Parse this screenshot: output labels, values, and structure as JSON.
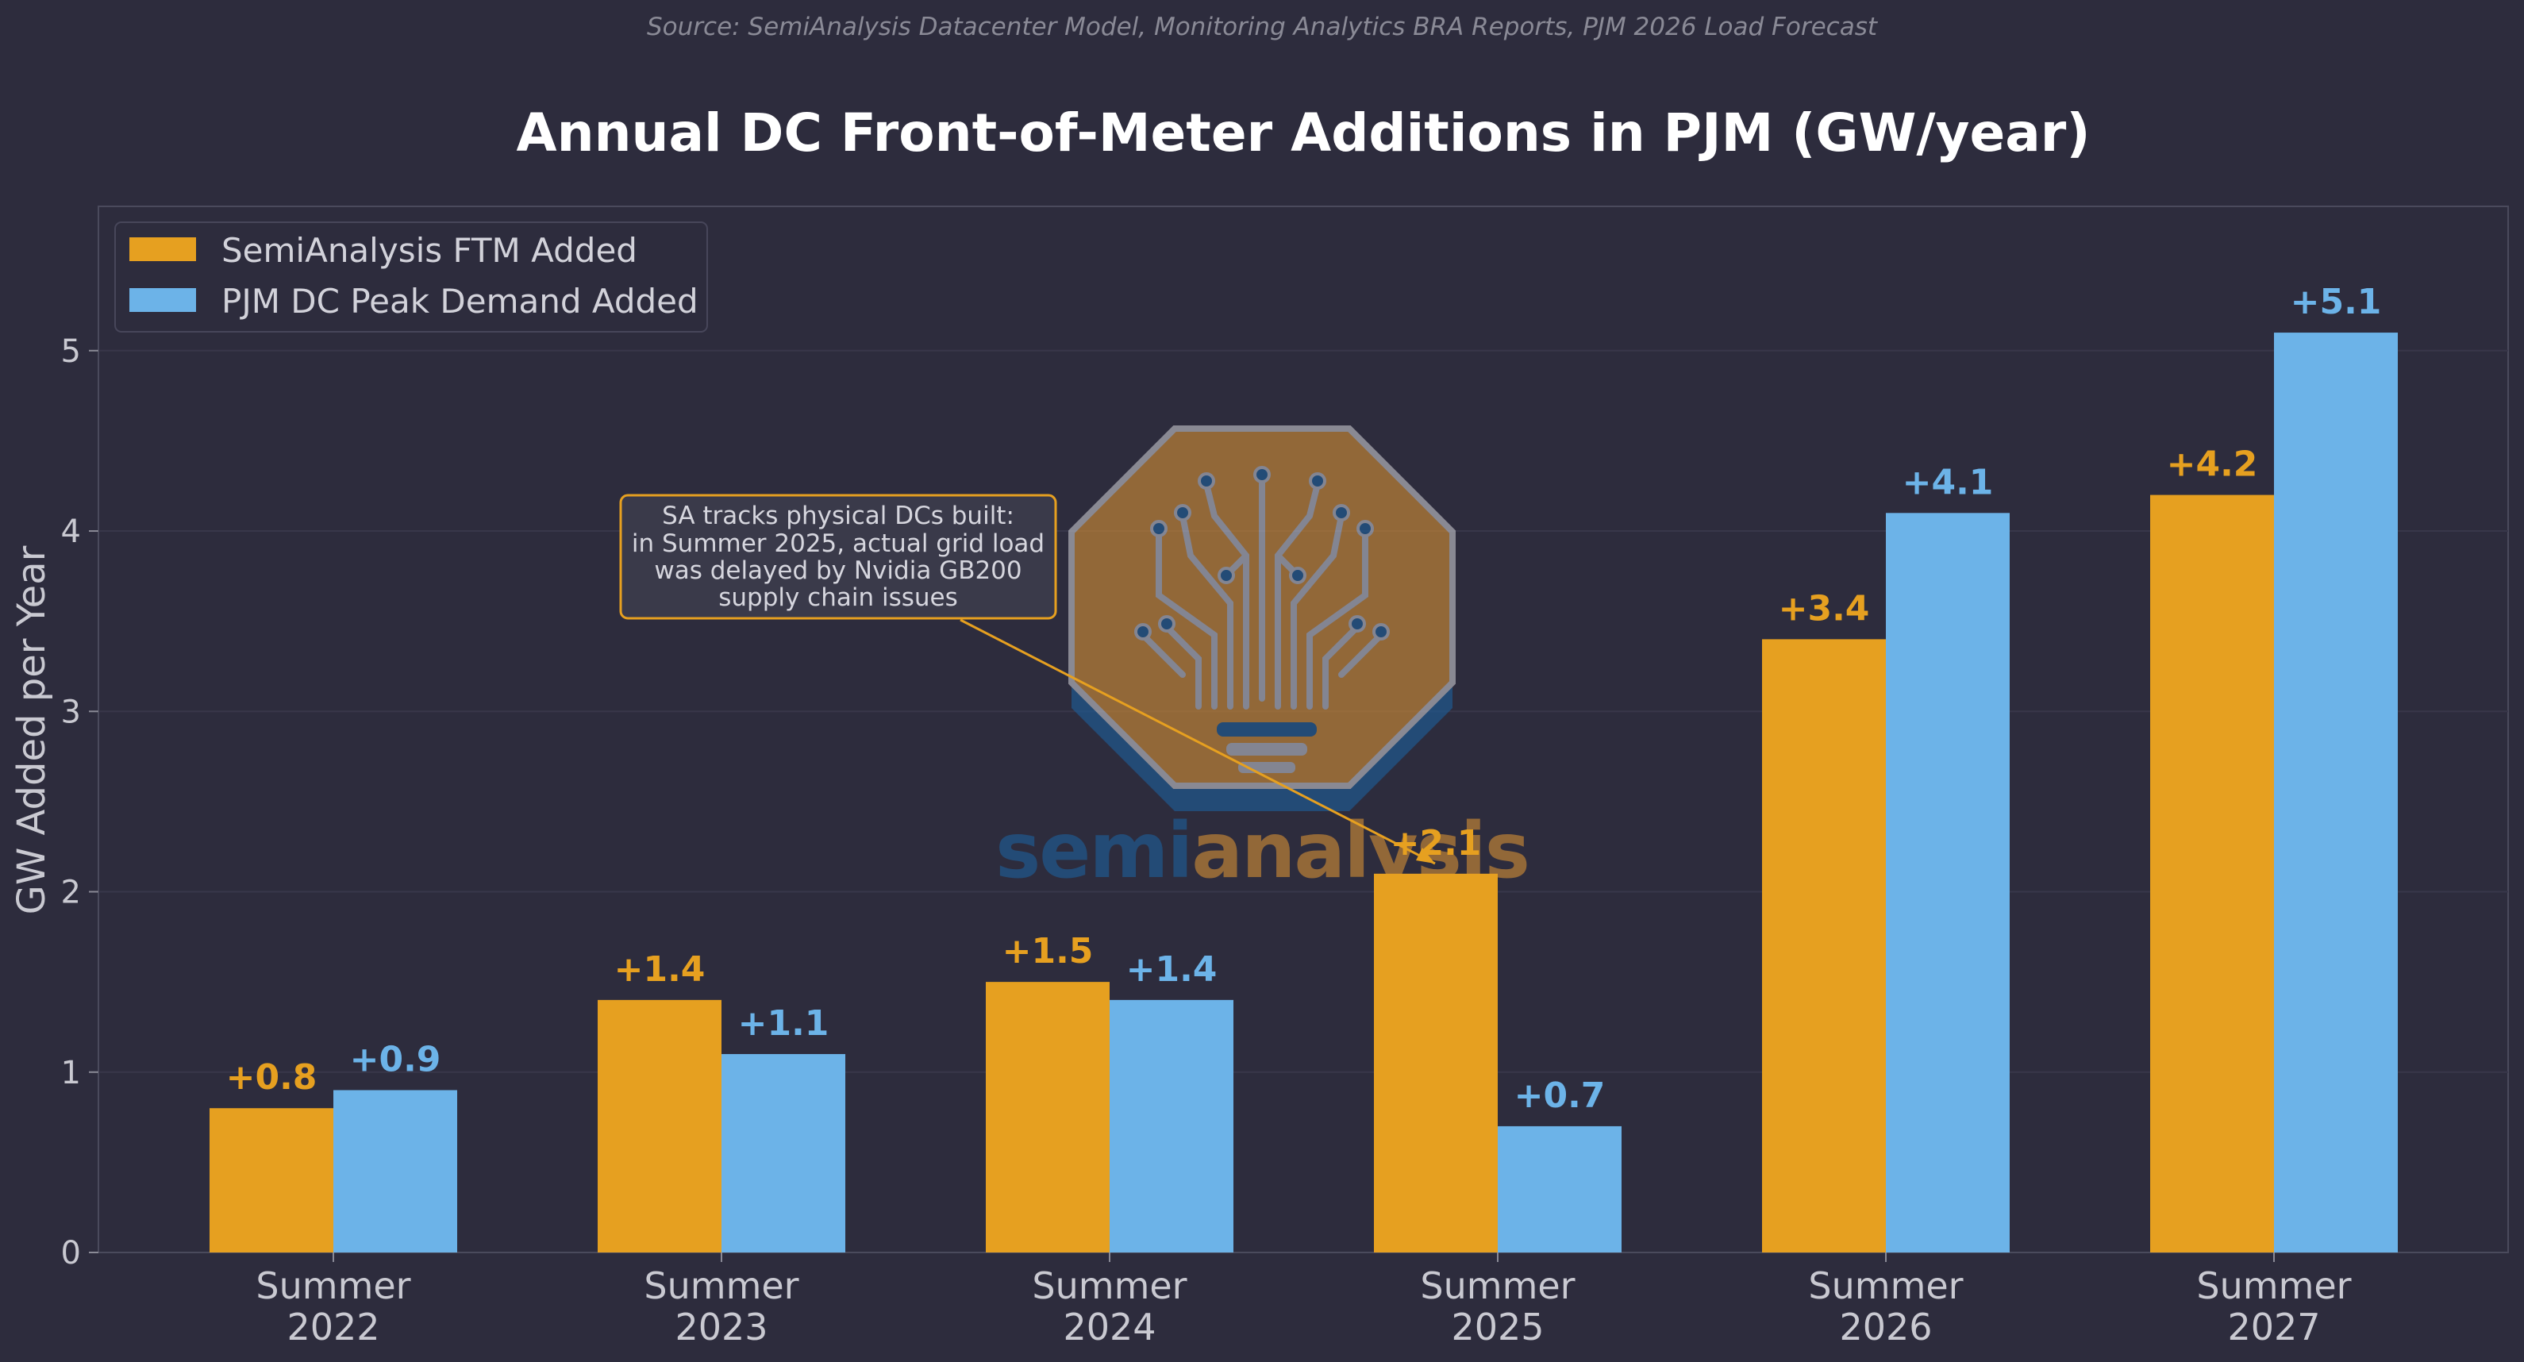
{
  "source_note": "Source: SemiAnalysis Datacenter Model, Monitoring Analytics BRA Reports, PJM 2026 Load Forecast",
  "colors": {
    "background": "#2d2c3d",
    "series_ftm": "#e6a020",
    "series_pjm": "#6cb3e8",
    "axis": "#4a4a5c",
    "grid": "#38374a"
  },
  "legend": [
    "SemiAnalysis FTM Added",
    "PJM DC Peak Demand Added"
  ],
  "annotation": {
    "lines": [
      "SA tracks physical DCs built:",
      "in Summer 2025, actual grid load",
      "was delayed by Nvidia GB200",
      "supply chain issues"
    ],
    "target_category": "Summer 2025",
    "target_series": "SemiAnalysis FTM Added"
  },
  "watermark": {
    "part1": "semi",
    "part2": "analysis",
    "icon": "circuit-tree-octagon-icon"
  },
  "chart_data": {
    "type": "bar",
    "title": "Annual DC Front-of-Meter Additions in PJM (GW/year)",
    "xlabel": "",
    "ylabel": "GW Added per Year",
    "categories": [
      "Summer 2022",
      "Summer 2023",
      "Summer 2024",
      "Summer 2025",
      "Summer 2026",
      "Summer 2027"
    ],
    "series": [
      {
        "name": "SemiAnalysis FTM Added",
        "values": [
          0.8,
          1.4,
          1.5,
          2.1,
          3.4,
          4.2
        ],
        "labels": [
          "+0.8",
          "+1.4",
          "+1.5",
          "+2.1",
          "+3.4",
          "+4.2"
        ]
      },
      {
        "name": "PJM DC Peak Demand Added",
        "values": [
          0.9,
          1.1,
          1.4,
          0.7,
          4.1,
          5.1
        ],
        "labels": [
          "+0.9",
          "+1.1",
          "+1.4",
          "+0.7",
          "+4.1",
          "+5.1"
        ]
      }
    ],
    "ylim": [
      0,
      5.8
    ],
    "yticks": [
      0,
      1,
      2,
      3,
      4,
      5
    ],
    "grid": true,
    "legend_position": "top-left"
  }
}
